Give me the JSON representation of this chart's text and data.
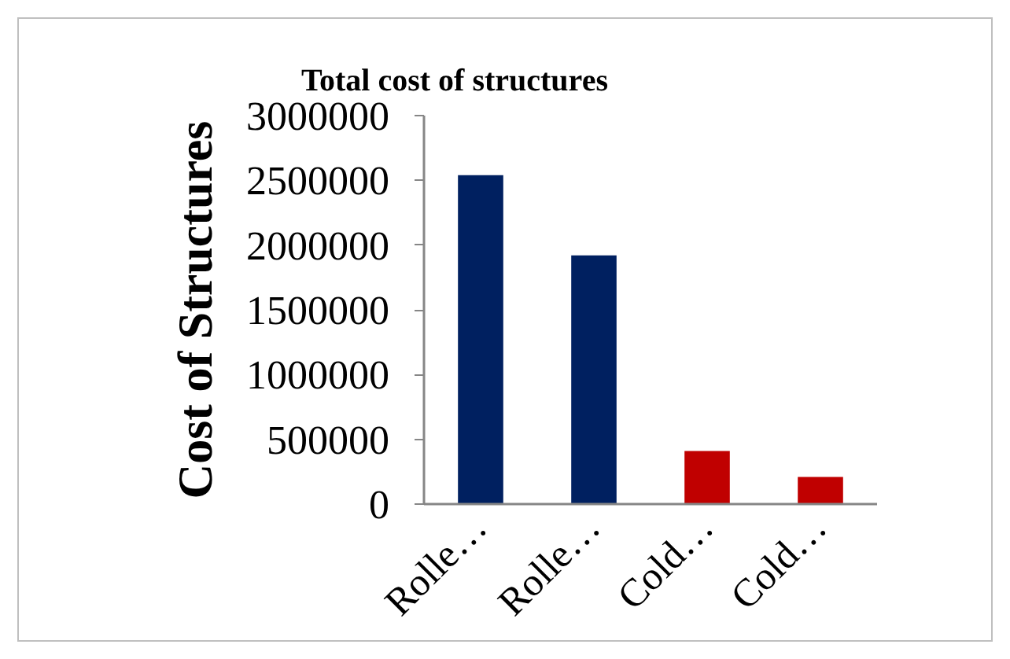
{
  "chart_data": {
    "type": "bar",
    "title": "Total  cost of structures",
    "ylabel": "Cost of Structures",
    "categories": [
      "Rolle…",
      "Rolle…",
      "Cold…",
      "Cold…"
    ],
    "values": [
      2540000,
      1920000,
      410000,
      210000
    ],
    "colors": [
      "#002060",
      "#002060",
      "#c00000",
      "#c00000"
    ],
    "ylim": [
      0,
      3000000
    ],
    "yticks": [
      0,
      500000,
      1000000,
      1500000,
      2000000,
      2500000,
      3000000
    ],
    "grid": false
  }
}
